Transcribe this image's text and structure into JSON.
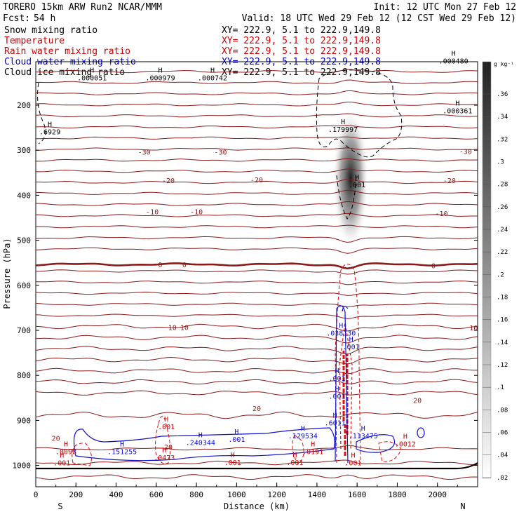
{
  "header": {
    "model": "TORERO  15km ARW   Run2    NCAR/MMM",
    "init": "Init: 12 UTC Mon 27 Feb 12",
    "fcst_label": "Fcst:",
    "fcst_value": "54 h",
    "valid": "Valid: 18 UTC Wed 29 Feb 12 (12 CST Wed 29 Feb 12)"
  },
  "fields": [
    {
      "name": "Snow mixing ratio",
      "xy": "XY= 222.9,  5.1 to 222.9,149.8",
      "color": "#000000"
    },
    {
      "name": "Temperature",
      "xy": "XY= 222.9,  5.1 to 222.9,149.8",
      "color": "#cc0000"
    },
    {
      "name": "Rain water mixing ratio",
      "xy": "XY= 222.9,  5.1 to 222.9,149.8",
      "color": "#cc0000"
    },
    {
      "name": "Cloud water mixing ratio",
      "xy": "XY= 222.9,  5.1 to 222.9,149.8",
      "color": "#0000cc"
    },
    {
      "name": "Cloud ice mixing ratio",
      "xy": "XY= 222.9,  5.1 to 222.9,149.8",
      "color": "#000000"
    }
  ],
  "colors": {
    "temperature": "#8b1a1a",
    "rain": "#e01010",
    "cloud_water": "#1010d0",
    "snow_shading": "#000000",
    "ice": "#000000"
  },
  "chart_data": {
    "type": "contour",
    "xlabel": "Distance (km)",
    "ylabel": "Pressure (hPa)",
    "xlim": [
      0,
      2200
    ],
    "ylim": [
      1050,
      100
    ],
    "x_ticks": [
      0,
      200,
      400,
      600,
      800,
      1000,
      1200,
      1400,
      1600,
      1800,
      2000
    ],
    "y_ticks": [
      200,
      300,
      400,
      500,
      600,
      700,
      800,
      900,
      1000
    ],
    "left_end": "S",
    "right_end": "N",
    "colorbar": {
      "unit": "g kg⁻¹",
      "min": 0,
      "max": 0.38,
      "ticks": [
        ".36",
        ".34",
        ".32",
        ".3",
        ".28",
        ".26",
        ".24",
        ".22",
        ".2",
        ".18",
        ".16",
        ".14",
        ".12",
        ".1",
        ".08",
        ".06",
        ".04",
        ".02"
      ]
    },
    "temperature_isotherms": [
      {
        "value": -30,
        "labels": [
          {
            "text": "-30",
            "x": 540,
            "p": 310
          },
          {
            "text": "-30",
            "x": 920,
            "p": 310
          },
          {
            "text": "-30",
            "x": 2140,
            "p": 308
          }
        ]
      },
      {
        "value": -20,
        "labels": [
          {
            "text": "-20",
            "x": 660,
            "p": 373
          },
          {
            "text": "-20",
            "x": 1100,
            "p": 371
          },
          {
            "text": "-20",
            "x": 2060,
            "p": 373
          }
        ]
      },
      {
        "value": -10,
        "labels": [
          {
            "text": "-10",
            "x": 580,
            "p": 442
          },
          {
            "text": "-10",
            "x": 800,
            "p": 442
          },
          {
            "text": "-10",
            "x": 2020,
            "p": 446
          }
        ]
      },
      {
        "value": 0,
        "labels": [
          {
            "text": "0",
            "x": 620,
            "p": 560
          },
          {
            "text": "0",
            "x": 740,
            "p": 560
          },
          {
            "text": "0",
            "x": 1980,
            "p": 562
          }
        ]
      },
      {
        "value": 10,
        "labels": [
          {
            "text": "10",
            "x": 680,
            "p": 699
          },
          {
            "text": "10",
            "x": 740,
            "p": 699
          },
          {
            "text": "10",
            "x": 2180,
            "p": 700
          }
        ]
      },
      {
        "value": 20,
        "labels": [
          {
            "text": "20",
            "x": 1100,
            "p": 879
          },
          {
            "text": "20",
            "x": 1900,
            "p": 861
          },
          {
            "text": "20",
            "x": 100,
            "p": 945
          },
          {
            "text": "20",
            "x": 660,
            "p": 965
          }
        ]
      }
    ],
    "maxima_labels": [
      {
        "text": ".000051",
        "x": 280,
        "p": 145,
        "color": "#000000"
      },
      {
        "text": ".000979",
        "x": 620,
        "p": 145,
        "color": "#000000"
      },
      {
        "text": ".000742",
        "x": 880,
        "p": 145,
        "color": "#000000"
      },
      {
        "text": ".000480",
        "x": 2080,
        "p": 107,
        "color": "#000000"
      },
      {
        "text": ".000361",
        "x": 2100,
        "p": 218,
        "color": "#000000"
      },
      {
        "text": ".179997",
        "x": 1530,
        "p": 259,
        "color": "#000000"
      },
      {
        "text": ".6929",
        "x": 70,
        "p": 265,
        "color": "#000000"
      },
      {
        "text": ".001",
        "x": 1600,
        "p": 382,
        "color": "#000000"
      },
      {
        "text": ".038130",
        "x": 1520,
        "p": 712,
        "color": "#1010d0"
      },
      {
        "text": ".001",
        "x": 1570,
        "p": 742,
        "color": "#1010d0"
      },
      {
        "text": ".001",
        "x": 1500,
        "p": 812,
        "color": "#1010d0"
      },
      {
        "text": ".001",
        "x": 1500,
        "p": 852,
        "color": "#1010d0"
      },
      {
        "text": ".6011",
        "x": 1490,
        "p": 911,
        "color": "#1010d0"
      },
      {
        "text": ".129534",
        "x": 1330,
        "p": 940,
        "color": "#1010d0"
      },
      {
        "text": ".113475",
        "x": 1630,
        "p": 940,
        "color": "#1010d0"
      },
      {
        "text": ".001",
        "x": 650,
        "p": 920,
        "color": "#cc0000"
      },
      {
        "text": ".240344",
        "x": 820,
        "p": 955,
        "color": "#1010d0"
      },
      {
        "text": ".001",
        "x": 1000,
        "p": 948,
        "color": "#1010d0"
      },
      {
        "text": ".151255",
        "x": 430,
        "p": 975,
        "color": "#1010d0"
      },
      {
        "text": ".0098",
        "x": 150,
        "p": 975,
        "color": "#cc0000"
      },
      {
        "text": ".0473",
        "x": 640,
        "p": 988,
        "color": "#cc0000"
      },
      {
        "text": ".0191",
        "x": 1380,
        "p": 975,
        "color": "#cc0000"
      },
      {
        "text": ".0012",
        "x": 1840,
        "p": 958,
        "color": "#cc0000"
      },
      {
        "text": ".001",
        "x": 130,
        "p": 1000,
        "color": "#cc0000"
      },
      {
        "text": ".001",
        "x": 980,
        "p": 999,
        "color": "#cc0000"
      },
      {
        "text": ".001",
        "x": 1290,
        "p": 999,
        "color": "#cc0000"
      },
      {
        "text": ".001",
        "x": 1580,
        "p": 1000,
        "color": "#cc0000"
      }
    ]
  }
}
